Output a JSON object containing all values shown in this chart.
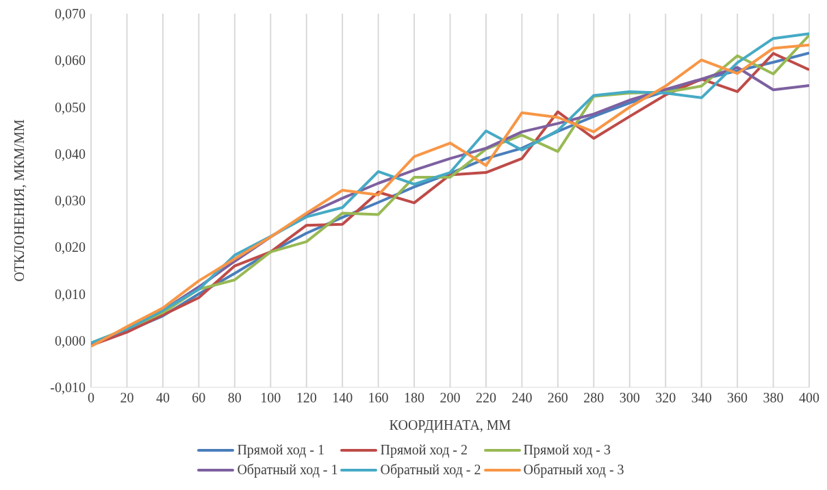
{
  "chart_data": {
    "type": "line",
    "xlabel": "КООРДИНАТА, ММ",
    "ylabel": "ОТКЛОНЕНИЯ, МКМ/ММ",
    "x": [
      0,
      20,
      40,
      60,
      80,
      100,
      120,
      140,
      160,
      180,
      200,
      220,
      240,
      260,
      280,
      300,
      320,
      340,
      360,
      380,
      400
    ],
    "xlim": [
      0,
      400
    ],
    "xticks": [
      0,
      20,
      40,
      60,
      80,
      100,
      120,
      140,
      160,
      180,
      200,
      220,
      240,
      260,
      280,
      300,
      320,
      340,
      360,
      380,
      400
    ],
    "ylim": [
      -0.01,
      0.07
    ],
    "yticks": [
      {
        "value": -0.01,
        "label": "-0,010"
      },
      {
        "value": 0,
        "label": "0,000"
      },
      {
        "value": 0.01,
        "label": "0,010"
      },
      {
        "value": 0.02,
        "label": "0,020"
      },
      {
        "value": 0.03,
        "label": "0,030"
      },
      {
        "value": 0.04,
        "label": "0,040"
      },
      {
        "value": 0.05,
        "label": "0,050"
      },
      {
        "value": 0.06,
        "label": "0,060"
      },
      {
        "value": 0.07,
        "label": "0,070"
      }
    ],
    "grid": "x",
    "legend": "bottom",
    "marker": "none",
    "line_style": "solid",
    "series": [
      {
        "name": "Прямой ход - 1",
        "color": "#4a7ebb",
        "values": [
          -0.0008,
          0.002,
          0.0053,
          0.01,
          0.0144,
          0.019,
          0.023,
          0.0264,
          0.0296,
          0.0329,
          0.0358,
          0.039,
          0.0412,
          0.0448,
          0.048,
          0.0509,
          0.0534,
          0.0559,
          0.0578,
          0.0596,
          0.0616
        ]
      },
      {
        "name": "Прямой ход - 2",
        "color": "#be4b48",
        "values": [
          -0.001,
          0.0018,
          0.0055,
          0.0092,
          0.016,
          0.019,
          0.0247,
          0.0249,
          0.0318,
          0.0295,
          0.0355,
          0.036,
          0.039,
          0.049,
          0.0433,
          0.048,
          0.0526,
          0.056,
          0.0533,
          0.0615,
          0.058
        ]
      },
      {
        "name": "Прямой ход - 3",
        "color": "#98b954",
        "values": [
          -0.0005,
          0.0025,
          0.006,
          0.011,
          0.013,
          0.019,
          0.0212,
          0.0273,
          0.027,
          0.035,
          0.035,
          0.041,
          0.044,
          0.0405,
          0.0523,
          0.053,
          0.0532,
          0.0545,
          0.061,
          0.0571,
          0.0654
        ]
      },
      {
        "name": "Обратный ход - 1",
        "color": "#7d60a0",
        "values": [
          -0.0008,
          0.0025,
          0.0065,
          0.0115,
          0.017,
          0.0222,
          0.027,
          0.0305,
          0.0337,
          0.0365,
          0.039,
          0.0412,
          0.0447,
          0.0465,
          0.0485,
          0.0515,
          0.0538,
          0.056,
          0.0585,
          0.0537,
          0.0546
        ]
      },
      {
        "name": "Обратный ход - 2",
        "color": "#46aac5",
        "values": [
          -0.0005,
          0.0025,
          0.0065,
          0.011,
          0.0183,
          0.0223,
          0.0265,
          0.0285,
          0.0362,
          0.0335,
          0.036,
          0.0449,
          0.0408,
          0.045,
          0.0525,
          0.0533,
          0.053,
          0.052,
          0.0595,
          0.0647,
          0.0657
        ]
      },
      {
        "name": "Обратный ход - 3",
        "color": "#f79646",
        "values": [
          -0.0012,
          0.003,
          0.007,
          0.0128,
          0.0175,
          0.0222,
          0.0273,
          0.0322,
          0.0312,
          0.0394,
          0.0423,
          0.0375,
          0.0488,
          0.0478,
          0.0447,
          0.05,
          0.0545,
          0.0601,
          0.0572,
          0.0626,
          0.0633
        ]
      }
    ]
  }
}
